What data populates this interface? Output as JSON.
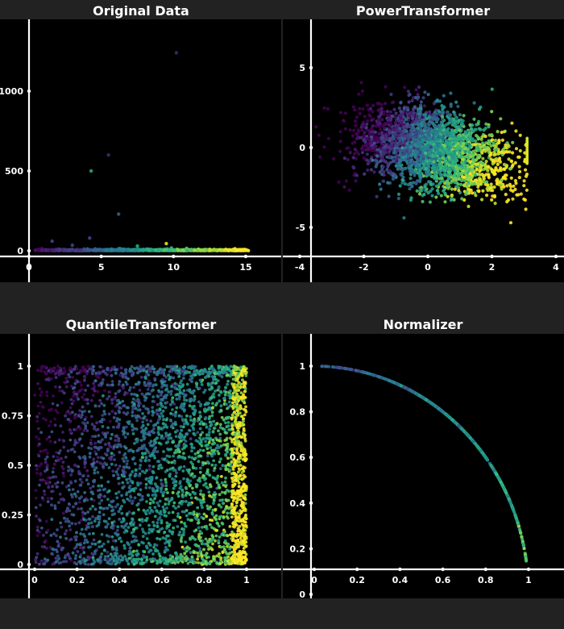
{
  "chart_data": [
    {
      "type": "scatter",
      "title": "Original Data",
      "xlim": [
        0,
        15.6
      ],
      "ylim": [
        -30,
        1330
      ],
      "x_ticks": [
        "0",
        "5",
        "10",
        "15"
      ],
      "x_tick_values": [
        0,
        5,
        10,
        15
      ],
      "y_ticks": [
        "0",
        "500",
        "1000"
      ],
      "y_tick_values": [
        0,
        500,
        1000
      ],
      "color_scale": "viridis",
      "points": [
        {
          "x": 10.2,
          "y": 1240,
          "c": 0.1
        },
        {
          "x": 5.5,
          "y": 600,
          "c": 0.1
        },
        {
          "x": 4.3,
          "y": 500,
          "c": 0.6
        },
        {
          "x": 6.2,
          "y": 230,
          "c": 0.3
        },
        {
          "x": 4.2,
          "y": 80,
          "c": 0.2
        },
        {
          "x": 1.6,
          "y": 60,
          "c": 0.2
        },
        {
          "x": 9.5,
          "y": 45,
          "c": 0.95
        },
        {
          "x": 7.5,
          "y": 30,
          "c": 0.6
        },
        {
          "x": 3.0,
          "y": 35,
          "c": 0.2
        }
      ],
      "band": {
        "x_range": [
          0.4,
          15.2
        ],
        "y_range": [
          0,
          25
        ],
        "count": 900
      }
    },
    {
      "type": "scatter",
      "title": "PowerTransformer",
      "xlim": [
        -4.2,
        4.2
      ],
      "ylim": [
        -6.8,
        7.0
      ],
      "x_ticks": [
        "-4",
        "-2",
        "0",
        "2",
        "4"
      ],
      "x_tick_values": [
        -4,
        -2,
        0,
        2,
        4
      ],
      "y_ticks": [
        "-5",
        "0",
        "5"
      ],
      "y_tick_values": [
        -5,
        0,
        5
      ],
      "color_scale": "viridis",
      "cloud": {
        "x_range": [
          -3.5,
          3.1
        ],
        "y_range": [
          -6,
          6
        ],
        "count": 2600
      }
    },
    {
      "type": "scatter",
      "title": "QuantileTransformer",
      "xlim": [
        -0.05,
        1.05
      ],
      "ylim": [
        -0.02,
        1.08
      ],
      "x_ticks": [
        "0",
        "0.2",
        "0.4",
        "0.6",
        "0.8",
        "1"
      ],
      "x_tick_values": [
        0,
        0.2,
        0.4,
        0.6,
        0.8,
        1
      ],
      "y_ticks": [
        "0",
        "0.25",
        "0.5",
        "0.75",
        "1"
      ],
      "y_tick_values": [
        0,
        0.25,
        0.5,
        0.75,
        1
      ],
      "color_scale": "viridis",
      "cloud": {
        "x_range": [
          0,
          1
        ],
        "y_range": [
          0,
          1
        ],
        "count": 3400
      }
    },
    {
      "type": "scatter",
      "title": "Normalizer",
      "xlim": [
        -0.04,
        1.1
      ],
      "ylim": [
        -0.03,
        1.12
      ],
      "x_ticks": [
        "0",
        "0.2",
        "0.4",
        "0.6",
        "0.8",
        "1"
      ],
      "x_tick_values": [
        0,
        0.2,
        0.4,
        0.6,
        0.8,
        1
      ],
      "y_ticks": [
        "0",
        "0.2",
        "0.4",
        "0.6",
        "0.8",
        "1"
      ],
      "y_tick_values": [
        0,
        0.2,
        0.4,
        0.6,
        0.8,
        1
      ],
      "color_scale": "viridis",
      "arc": {
        "x_range": [
          0,
          1
        ],
        "y_min": 0.14,
        "radius": 1,
        "count": 700
      }
    }
  ]
}
